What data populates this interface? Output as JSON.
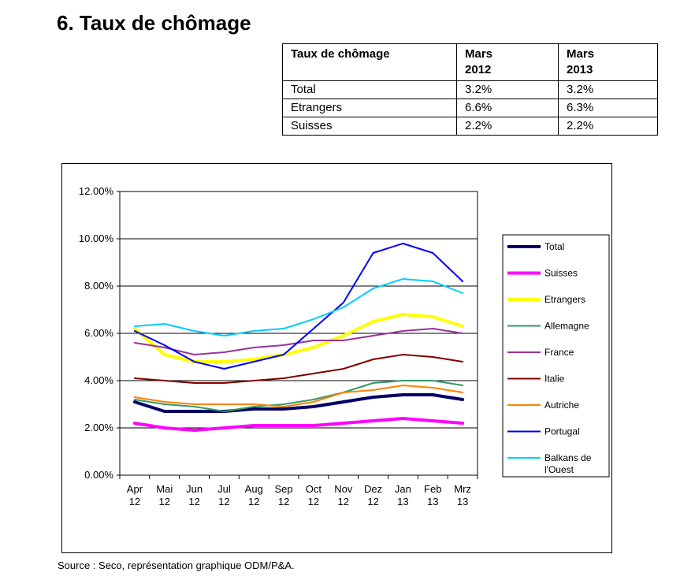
{
  "page": {
    "title": "6. Taux de chômage",
    "source": "Source : Seco, représentation graphique ODM/P&A."
  },
  "table": {
    "header": [
      "Taux de chômage",
      "Mars 2012",
      "Mars 2013"
    ],
    "header_lines": [
      [
        "Taux de chômage"
      ],
      [
        "Mars",
        "2012"
      ],
      [
        "Mars",
        "2013"
      ]
    ],
    "rows": [
      [
        "Total",
        "3.2%",
        "3.2%"
      ],
      [
        "Etrangers",
        "6.6%",
        "6.3%"
      ],
      [
        "Suisses",
        "2.2%",
        "2.2%"
      ]
    ]
  },
  "chart_data": {
    "type": "line",
    "title": "",
    "xlabel": "",
    "ylabel": "",
    "categories": [
      "Apr 12",
      "Mai 12",
      "Jun 12",
      "Jul 12",
      "Aug 12",
      "Sep 12",
      "Oct 12",
      "Nov 12",
      "Dez 12",
      "Jan 13",
      "Feb 13",
      "Mrz 13"
    ],
    "category_lines": [
      [
        "Apr",
        "12"
      ],
      [
        "Mai",
        "12"
      ],
      [
        "Jun",
        "12"
      ],
      [
        "Jul",
        "12"
      ],
      [
        "Aug",
        "12"
      ],
      [
        "Sep",
        "12"
      ],
      [
        "Oct",
        "12"
      ],
      [
        "Nov",
        "12"
      ],
      [
        "Dez",
        "12"
      ],
      [
        "Jan",
        "13"
      ],
      [
        "Feb",
        "13"
      ],
      [
        "Mrz",
        "13"
      ]
    ],
    "ylim": [
      0,
      12
    ],
    "yticks": [
      0,
      2,
      4,
      6,
      8,
      10,
      12
    ],
    "ytick_labels": [
      "0.00%",
      "2.00%",
      "4.00%",
      "6.00%",
      "8.00%",
      "10.00%",
      "12.00%"
    ],
    "grid": "horizontal",
    "legend_position": "right",
    "series": [
      {
        "name": "Total",
        "color": "#000066",
        "values": [
          3.1,
          2.7,
          2.7,
          2.7,
          2.8,
          2.8,
          2.9,
          3.1,
          3.3,
          3.4,
          3.4,
          3.2
        ]
      },
      {
        "name": "Suisses",
        "color": "#ff00ff",
        "values": [
          2.2,
          2.0,
          1.9,
          2.0,
          2.1,
          2.1,
          2.1,
          2.2,
          2.3,
          2.4,
          2.3,
          2.2
        ]
      },
      {
        "name": "Etrangers",
        "color": "#ffff00",
        "values": [
          6.2,
          5.1,
          4.8,
          4.8,
          4.9,
          5.1,
          5.4,
          5.9,
          6.5,
          6.8,
          6.7,
          6.3
        ]
      },
      {
        "name": "Allemagne",
        "color": "#339966",
        "values": [
          3.2,
          3.0,
          2.9,
          2.7,
          2.9,
          3.0,
          3.2,
          3.5,
          3.9,
          4.0,
          4.0,
          3.8
        ]
      },
      {
        "name": "France",
        "color": "#993399",
        "values": [
          5.6,
          5.4,
          5.1,
          5.2,
          5.4,
          5.5,
          5.7,
          5.7,
          5.9,
          6.1,
          6.2,
          6.0
        ]
      },
      {
        "name": "Italie",
        "color": "#800000",
        "values": [
          4.1,
          4.0,
          3.9,
          3.9,
          4.0,
          4.1,
          4.3,
          4.5,
          4.9,
          5.1,
          5.0,
          4.8
        ]
      },
      {
        "name": "Autriche",
        "color": "#ff8000",
        "values": [
          3.3,
          3.1,
          3.0,
          3.0,
          3.0,
          2.9,
          3.1,
          3.5,
          3.6,
          3.8,
          3.7,
          3.5
        ]
      },
      {
        "name": "Portugal",
        "color": "#0000ff",
        "values": [
          6.1,
          5.5,
          4.8,
          4.5,
          4.8,
          5.1,
          6.2,
          7.3,
          9.4,
          9.8,
          9.4,
          8.2
        ]
      },
      {
        "name": "Balkans de l'Ouest",
        "color": "#00ccff",
        "values": [
          6.3,
          6.4,
          6.1,
          5.9,
          6.1,
          6.2,
          6.6,
          7.1,
          7.9,
          8.3,
          8.2,
          7.7
        ]
      }
    ],
    "legend_label_lines": [
      [
        "Total"
      ],
      [
        "Suisses"
      ],
      [
        "Etrangers"
      ],
      [
        "Allemagne"
      ],
      [
        "France"
      ],
      [
        "Italie"
      ],
      [
        "Autriche"
      ],
      [
        "Portugal"
      ],
      [
        "Balkans de",
        "l'Ouest"
      ]
    ]
  }
}
